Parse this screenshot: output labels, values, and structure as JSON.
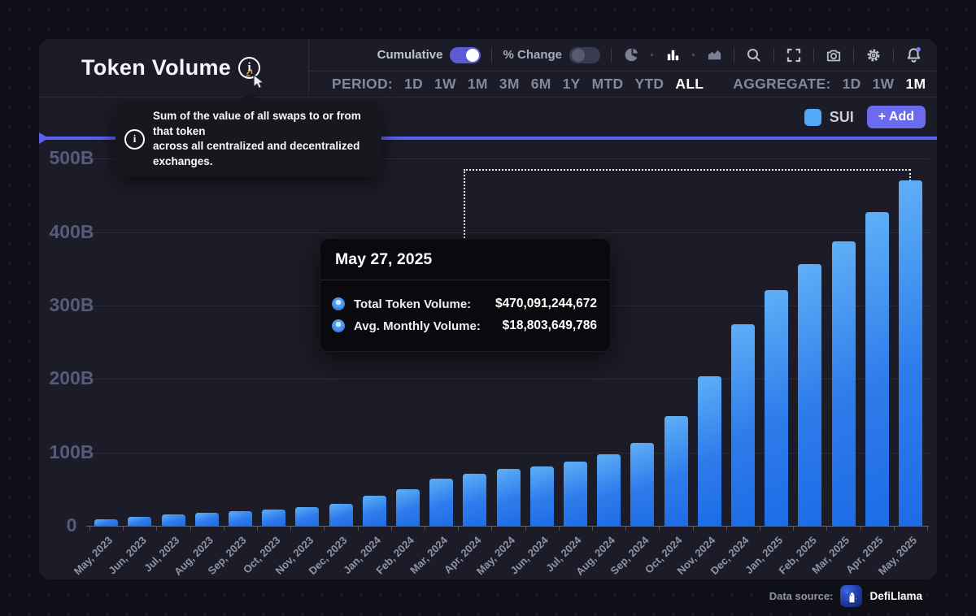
{
  "header": {
    "title": "Token Volume",
    "info_tooltip": {
      "line1": "Sum of the value of all swaps to or from that token",
      "line2": "across all centralized and decentralized exchanges."
    },
    "toggles": [
      {
        "label": "Cumulative",
        "state": "on"
      },
      {
        "label": "% Change",
        "state": "off"
      }
    ],
    "icons": [
      "pie-chart",
      "bar-chart",
      "area-chart",
      "search",
      "fullscreen",
      "camera",
      "settings",
      "notifications"
    ],
    "period": {
      "label": "PERIOD:",
      "options": [
        "1D",
        "1W",
        "1M",
        "3M",
        "6M",
        "1Y",
        "MTD",
        "YTD",
        "ALL"
      ],
      "selected": "ALL"
    },
    "aggregate": {
      "label": "AGGREGATE:",
      "options": [
        "1D",
        "1W",
        "1M"
      ],
      "selected": "1M"
    }
  },
  "legend": {
    "token": "SUI",
    "color": "#54A8F8",
    "add_button": "+ Add"
  },
  "chart_tooltip": {
    "date": "May 27, 2025",
    "rows": [
      {
        "label": "Total Token Volume:",
        "value": "$470,091,244,672"
      },
      {
        "label": "Avg. Monthly Volume:",
        "value": "$18,803,649,786"
      }
    ]
  },
  "footer": {
    "label": "Data source:",
    "source": "DefiLlama"
  },
  "colors": {
    "accent_purple": "#5C5FF0",
    "bar_gradient_top": "#5FAFF7",
    "bar_gradient_bottom": "#1E6CE6",
    "sui_legend": "#54A8F8",
    "toggle_on": "#5B5BD6",
    "panel_bg": "#1B1C27",
    "page_bg": "#0F1017"
  },
  "chart_data": {
    "type": "bar",
    "title": "Token Volume",
    "series_name": "SUI",
    "unit": "USD billions (cumulative)",
    "categories": [
      "May, 2023",
      "Jun, 2023",
      "Jul, 2023",
      "Aug, 2023",
      "Sep, 2023",
      "Oct, 2023",
      "Nov, 2023",
      "Dec, 2023",
      "Jan, 2024",
      "Feb, 2024",
      "Mar, 2024",
      "Apr, 2024",
      "May, 2024",
      "Jun, 2024",
      "Jul, 2024",
      "Aug, 2024",
      "Sep, 2024",
      "Oct, 2024",
      "Nov, 2024",
      "Dec, 2024",
      "Jan, 2025",
      "Feb, 2025",
      "Mar, 2025",
      "Apr, 2025",
      "May, 2025"
    ],
    "values": [
      9,
      12,
      15,
      18,
      20,
      22,
      25,
      30,
      41,
      50,
      64,
      71,
      78,
      81,
      87,
      97,
      113,
      150,
      204,
      274,
      321,
      357,
      387,
      427,
      470.09
    ],
    "xlabel": "",
    "ylabel": "",
    "ylim": [
      0,
      500
    ],
    "y_ticks": [
      {
        "value": 0,
        "label": "0"
      },
      {
        "value": 100,
        "label": "100B"
      },
      {
        "value": 200,
        "label": "200B"
      },
      {
        "value": 300,
        "label": "300B"
      },
      {
        "value": 400,
        "label": "400B"
      },
      {
        "value": 500,
        "label": "500B"
      }
    ],
    "grid": true,
    "legend_position": "top-right",
    "highlighted_category": "May, 2025"
  }
}
